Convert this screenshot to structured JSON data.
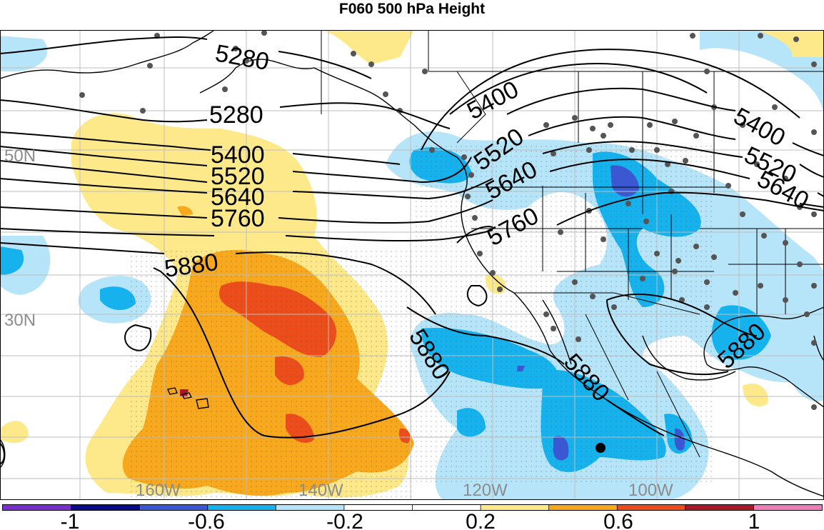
{
  "title": "F060 500 hPa Height",
  "colors": {
    "neg_1": "#7a2fcf",
    "neg_08": "#0b0b8a",
    "neg_06": "#3a57d4",
    "neg_04": "#16b2ee",
    "neg_02": "#b6e4f8",
    "zero": "#ffffff",
    "pos_02": "#fde98a",
    "pos_04": "#f7a81c",
    "pos_06": "#ec4d1a",
    "pos_08": "#a9192b",
    "pos_10": "#ec7fbb",
    "contour": "#000000",
    "station": "#555555",
    "grid": "#bdbdbd"
  },
  "lat_labels": [
    "50N",
    "30N"
  ],
  "lon_labels": [
    "160W",
    "140W",
    "120W",
    "100W"
  ],
  "contour_labels": [
    "5280",
    "5280",
    "5400",
    "5520",
    "5640",
    "5760",
    "5880",
    "5400",
    "5520",
    "5640",
    "5760",
    "5880",
    "5880",
    "5400",
    "5520",
    "5640",
    "5880"
  ],
  "colorbar": {
    "tick_labels": [
      "-1",
      "-0.6",
      "-0.2",
      "0.2",
      "0.6",
      "1"
    ],
    "levels": [
      -1,
      -0.8,
      -0.6,
      -0.4,
      -0.2,
      0,
      0.2,
      0.4,
      0.6,
      0.8,
      1
    ]
  }
}
